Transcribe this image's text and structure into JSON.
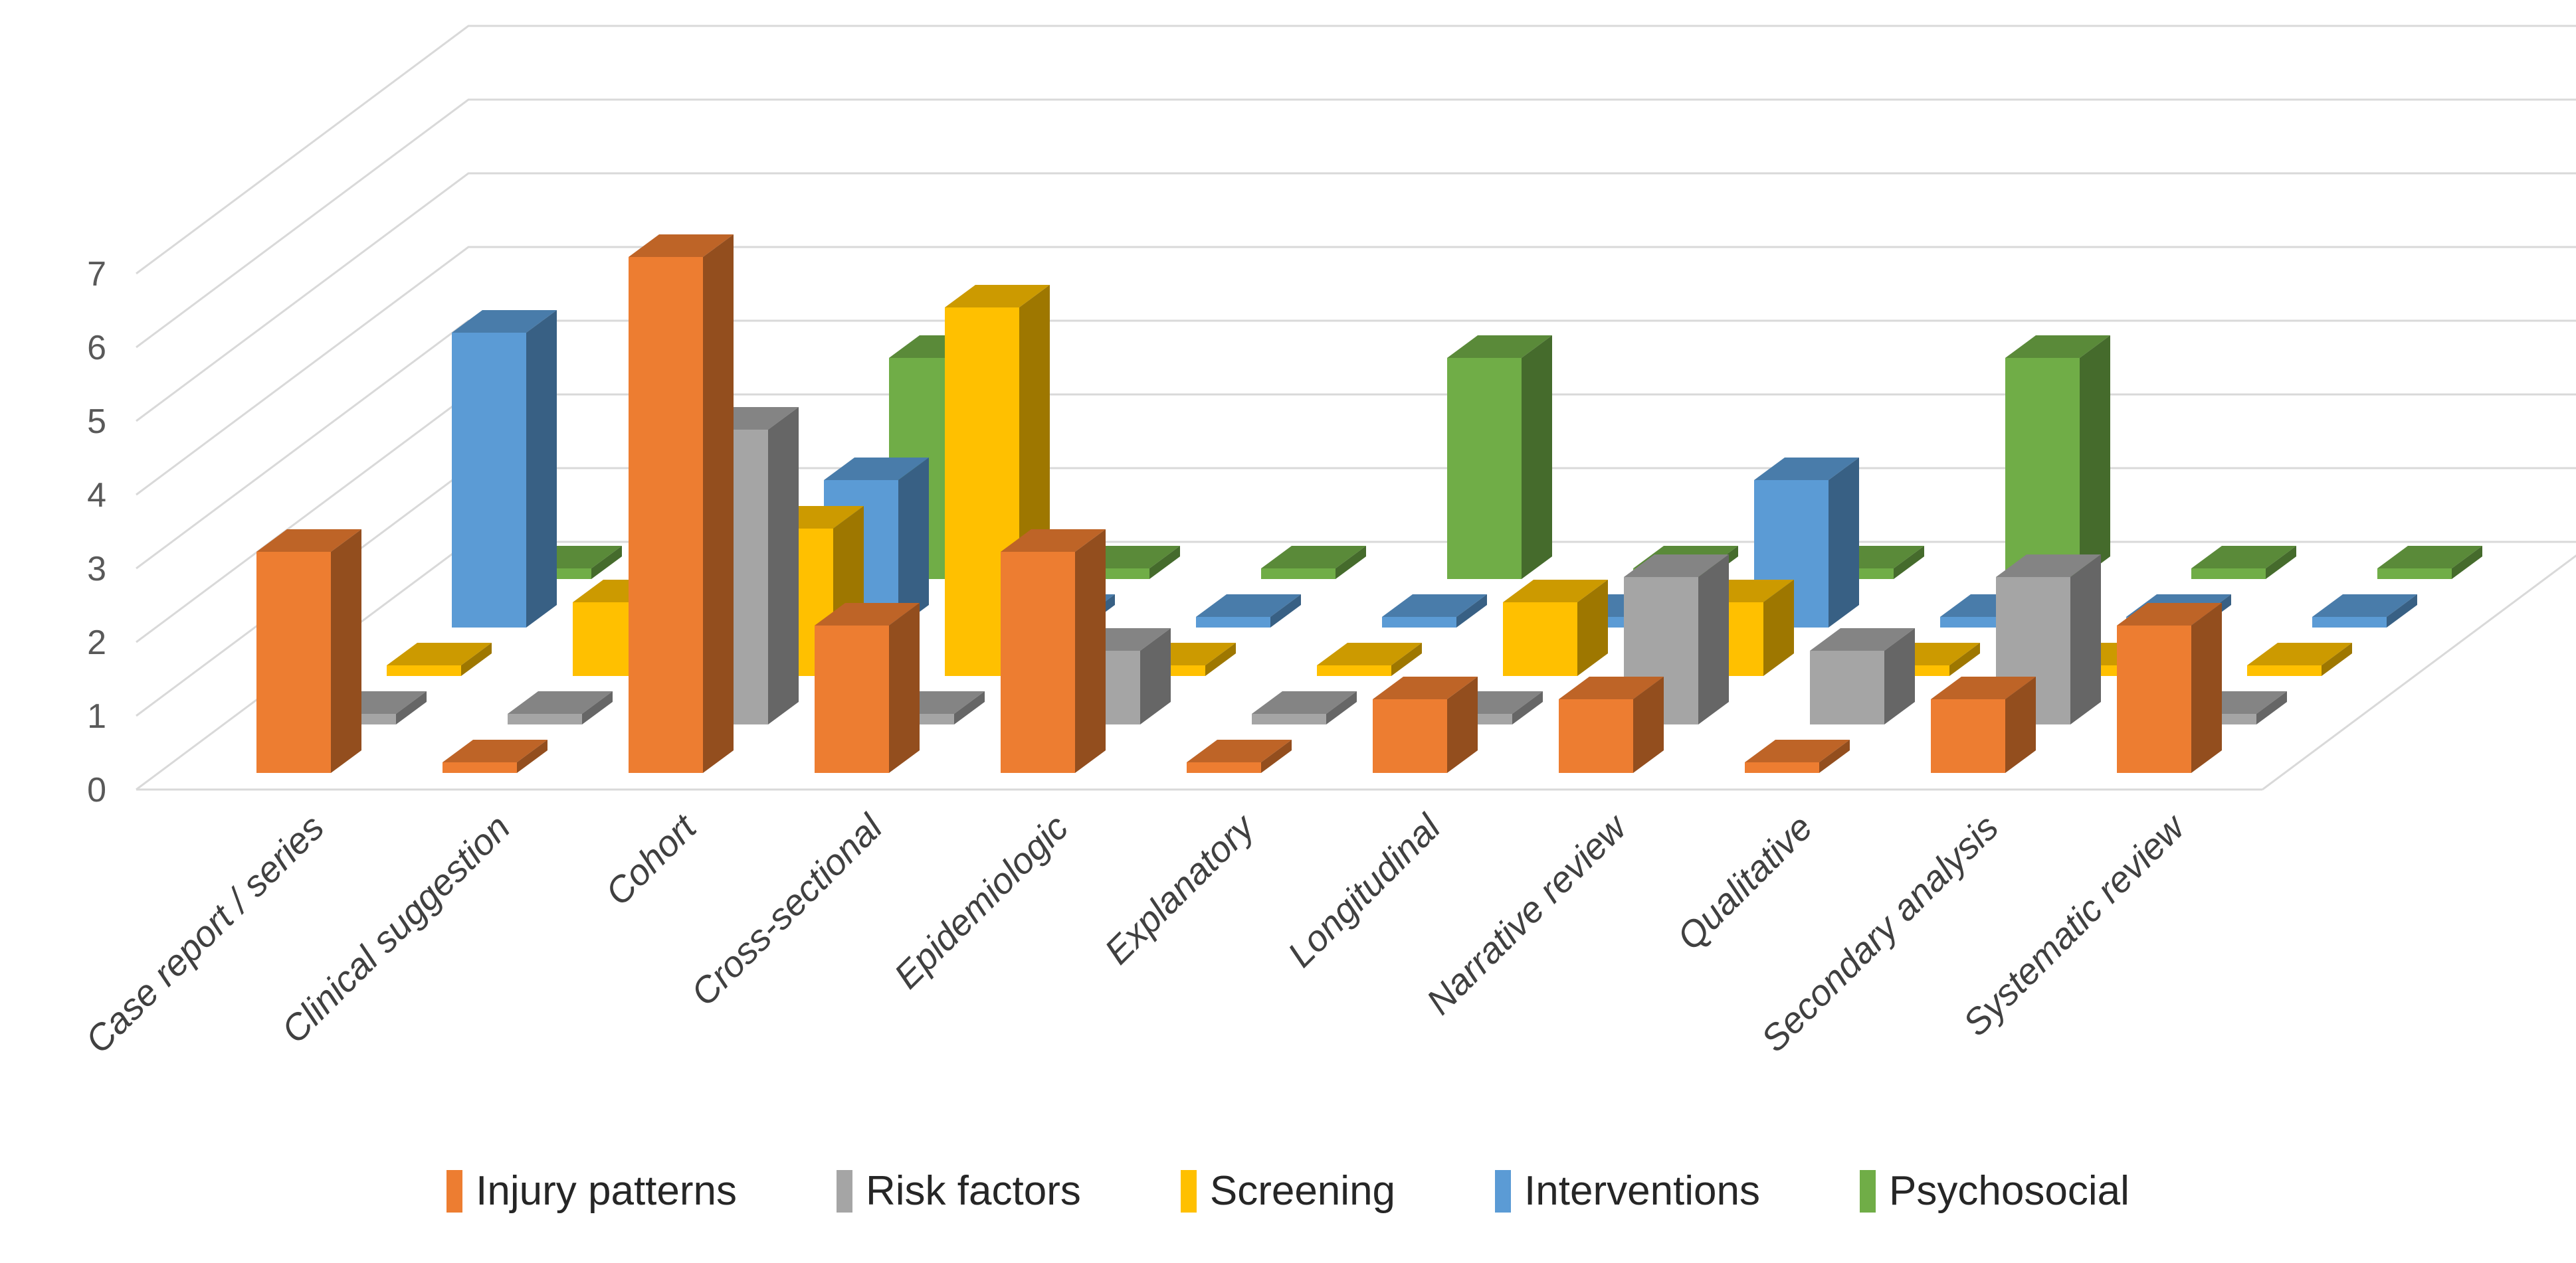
{
  "chart_data": {
    "type": "bar",
    "variant": "3d-column-depth-series",
    "title": "",
    "xlabel": "",
    "ylabel": "",
    "categories": [
      "Case report / series",
      "Clinical suggestion",
      "Cohort",
      "Cross-sectional",
      "Epidemiologic",
      "Explanatory",
      "Longitudinal",
      "Narrative review",
      "Qualitative",
      "Secondary analysis",
      "Systematic review"
    ],
    "series": [
      {
        "name": "Injury patterns",
        "color": "#ED7D31",
        "values": [
          3,
          0,
          7,
          2,
          3,
          0,
          1,
          1,
          0,
          1,
          2
        ]
      },
      {
        "name": "Risk factors",
        "color": "#A5A5A5",
        "values": [
          0,
          0,
          4,
          0,
          1,
          0,
          0,
          2,
          1,
          2,
          0
        ]
      },
      {
        "name": "Screening",
        "color": "#FFC000",
        "values": [
          0,
          1,
          2,
          5,
          0,
          0,
          1,
          1,
          0,
          0,
          0
        ]
      },
      {
        "name": "Interventions",
        "color": "#5B9BD5",
        "values": [
          4,
          0,
          2,
          0,
          0,
          0,
          0,
          2,
          0,
          0,
          0
        ]
      },
      {
        "name": "Psychosocial",
        "color": "#70AD47",
        "values": [
          0,
          0,
          3,
          0,
          0,
          3,
          0,
          0,
          3,
          0,
          0
        ]
      }
    ],
    "y_axis": {
      "min": 0,
      "max": 7,
      "step": 1,
      "tick_labels": [
        "0",
        "1",
        "2",
        "3",
        "4",
        "5",
        "6",
        "7"
      ]
    },
    "legend_position": "bottom",
    "grid": true,
    "styles": {
      "gridline_color": "#D9D9D9",
      "tick_label_color": "#595959",
      "category_label_color": "#404040"
    }
  }
}
